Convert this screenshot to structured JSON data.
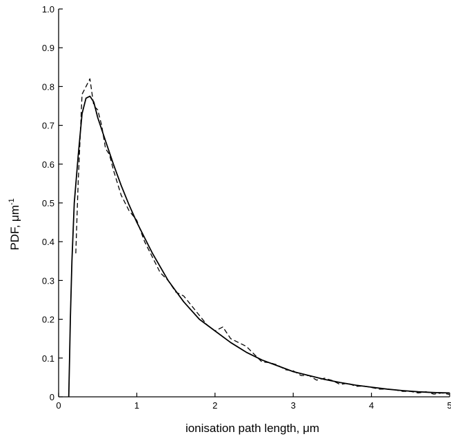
{
  "chart_data": {
    "type": "line",
    "xlabel": "ionisation path length, μm",
    "ylabel_main": "PDF, μm",
    "ylabel_superscript": "-1",
    "xlim": [
      0,
      5
    ],
    "ylim": [
      0,
      1.0
    ],
    "x_ticks": [
      "0",
      "1",
      "2",
      "3",
      "4",
      "5"
    ],
    "y_ticks": [
      "0",
      "0.1",
      "0.2",
      "0.3",
      "0.4",
      "0.5",
      "0.6",
      "0.7",
      "0.8",
      "0.9",
      "1.0"
    ],
    "grid": false,
    "series": [
      {
        "style": "solid",
        "x": [
          0.13,
          0.14,
          0.15,
          0.17,
          0.2,
          0.25,
          0.3,
          0.35,
          0.4,
          0.45,
          0.5,
          0.6,
          0.7,
          0.8,
          0.9,
          1.0,
          1.2,
          1.4,
          1.6,
          1.8,
          2.0,
          2.2,
          2.4,
          2.6,
          2.8,
          3.0,
          3.2,
          3.4,
          3.6,
          3.8,
          4.0,
          4.2,
          4.4,
          4.6,
          4.8,
          5.0
        ],
        "y": [
          0.0,
          0.1,
          0.2,
          0.35,
          0.5,
          0.62,
          0.73,
          0.77,
          0.775,
          0.76,
          0.72,
          0.66,
          0.6,
          0.545,
          0.495,
          0.45,
          0.37,
          0.3,
          0.245,
          0.2,
          0.17,
          0.14,
          0.115,
          0.095,
          0.08,
          0.065,
          0.055,
          0.045,
          0.037,
          0.03,
          0.025,
          0.02,
          0.016,
          0.013,
          0.011,
          0.01
        ]
      },
      {
        "style": "dashed",
        "x": [
          0.22,
          0.25,
          0.3,
          0.35,
          0.4,
          0.45,
          0.5,
          0.55,
          0.6,
          0.65,
          0.7,
          0.8,
          0.9,
          1.0,
          1.1,
          1.2,
          1.3,
          1.4,
          1.5,
          1.6,
          1.7,
          1.8,
          1.9,
          2.0,
          2.1,
          2.2,
          2.3,
          2.4,
          2.5,
          2.6,
          2.7,
          2.8,
          2.9,
          3.0,
          3.1,
          3.2,
          3.3,
          3.4,
          3.5,
          3.6,
          3.7,
          3.8,
          3.9,
          4.0,
          4.1,
          4.2,
          4.3,
          4.4,
          4.5,
          4.6,
          4.7,
          4.8,
          4.9,
          5.0
        ],
        "y": [
          0.37,
          0.55,
          0.78,
          0.8,
          0.82,
          0.75,
          0.74,
          0.7,
          0.64,
          0.625,
          0.585,
          0.52,
          0.48,
          0.455,
          0.4,
          0.36,
          0.32,
          0.3,
          0.27,
          0.26,
          0.235,
          0.21,
          0.185,
          0.17,
          0.18,
          0.15,
          0.14,
          0.13,
          0.11,
          0.09,
          0.088,
          0.082,
          0.07,
          0.067,
          0.055,
          0.055,
          0.043,
          0.048,
          0.042,
          0.032,
          0.035,
          0.027,
          0.028,
          0.024,
          0.02,
          0.02,
          0.018,
          0.014,
          0.014,
          0.01,
          0.013,
          0.007,
          0.01,
          0.006
        ]
      }
    ]
  }
}
